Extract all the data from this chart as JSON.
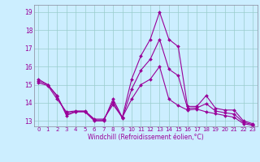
{
  "title": "",
  "xlabel": "Windchill (Refroidissement éolien,°C)",
  "bg_color": "#cceeff",
  "line_color": "#990099",
  "grid_color": "#99cccc",
  "xlim": [
    -0.5,
    23.5
  ],
  "ylim": [
    12.7,
    19.4
  ],
  "xticks": [
    0,
    1,
    2,
    3,
    4,
    5,
    6,
    7,
    8,
    9,
    10,
    11,
    12,
    13,
    14,
    15,
    16,
    17,
    18,
    19,
    20,
    21,
    22,
    23
  ],
  "yticks": [
    13,
    14,
    15,
    16,
    17,
    18,
    19
  ],
  "line1_x": [
    0,
    1,
    2,
    3,
    4,
    5,
    6,
    7,
    8,
    9,
    10,
    11,
    12,
    13,
    14,
    15,
    16,
    17,
    18,
    19,
    20,
    21,
    22,
    23
  ],
  "line1_y": [
    15.3,
    15.0,
    14.4,
    13.3,
    13.5,
    13.5,
    13.0,
    13.0,
    14.2,
    13.2,
    15.3,
    16.6,
    17.5,
    19.0,
    17.5,
    17.1,
    13.8,
    13.8,
    14.4,
    13.7,
    13.6,
    13.6,
    13.0,
    12.85
  ],
  "line2_x": [
    0,
    1,
    2,
    3,
    4,
    5,
    6,
    7,
    8,
    9,
    10,
    11,
    12,
    13,
    14,
    15,
    16,
    17,
    18,
    19,
    20,
    21,
    22,
    23
  ],
  "line2_y": [
    15.1,
    14.95,
    14.2,
    13.5,
    13.55,
    13.55,
    13.1,
    13.1,
    13.9,
    13.2,
    14.2,
    15.0,
    15.3,
    16.0,
    14.2,
    13.85,
    13.6,
    13.65,
    13.5,
    13.4,
    13.3,
    13.2,
    12.85,
    12.75
  ],
  "line3_x": [
    0,
    1,
    2,
    3,
    4,
    5,
    6,
    7,
    8,
    9,
    10,
    11,
    12,
    13,
    14,
    15,
    16,
    17,
    18,
    19,
    20,
    21,
    22,
    23
  ],
  "line3_y": [
    15.2,
    15.0,
    14.35,
    13.4,
    13.52,
    13.52,
    13.05,
    13.05,
    14.05,
    13.15,
    14.75,
    15.8,
    16.4,
    17.5,
    15.85,
    15.5,
    13.7,
    13.72,
    13.95,
    13.55,
    13.45,
    13.38,
    12.92,
    12.8
  ],
  "markersize": 2.0,
  "linewidth": 0.8,
  "tick_fontsize": 5.0,
  "xlabel_fontsize": 5.5
}
